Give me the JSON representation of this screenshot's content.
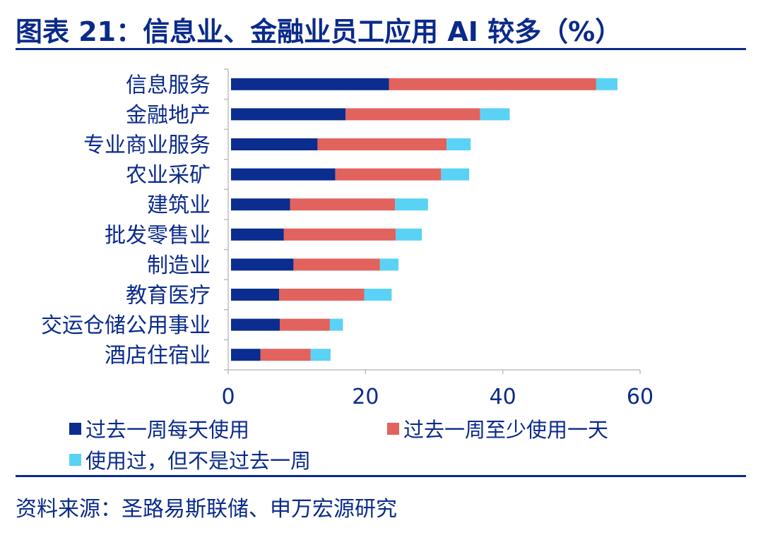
{
  "title": "图表 21：信息业、金融业员工应用 AI 较多（%）",
  "source": "资料来源：圣路易斯联储、申万宏源研究",
  "colors": {
    "daily": "#0a2d8f",
    "weekly": "#e2625e",
    "ever": "#5ad2f5",
    "text": "#0a2a8a",
    "axis": "#bfbfbf"
  },
  "chart_data": {
    "type": "bar",
    "orientation": "horizontal",
    "stacked": true,
    "categories": [
      "信息服务",
      "金融地产",
      "专业商业服务",
      "农业采矿",
      "建筑业",
      "批发零售业",
      "制造业",
      "教育医疗",
      "交运仓储公用事业",
      "酒店住宿业"
    ],
    "series": [
      {
        "name": "过去一周每天使用",
        "values": [
          23,
          16.7,
          12.6,
          15.2,
          8.6,
          7.7,
          9.1,
          7.0,
          7.1,
          4.3
        ]
      },
      {
        "name": "过去一周至少使用一天",
        "values": [
          30.2,
          19.6,
          18.8,
          15.4,
          15.3,
          16.3,
          12.6,
          12.4,
          7.3,
          7.3
        ]
      },
      {
        "name": "使用过，但不是过去一周",
        "values": [
          3.1,
          4.3,
          3.5,
          4.1,
          4.8,
          3.8,
          2.7,
          4.0,
          1.9,
          2.9
        ]
      }
    ],
    "xlim": [
      0,
      60
    ],
    "xticks": [
      "0",
      "20",
      "40",
      "60"
    ],
    "legend_position": "bottom",
    "grid": false
  }
}
